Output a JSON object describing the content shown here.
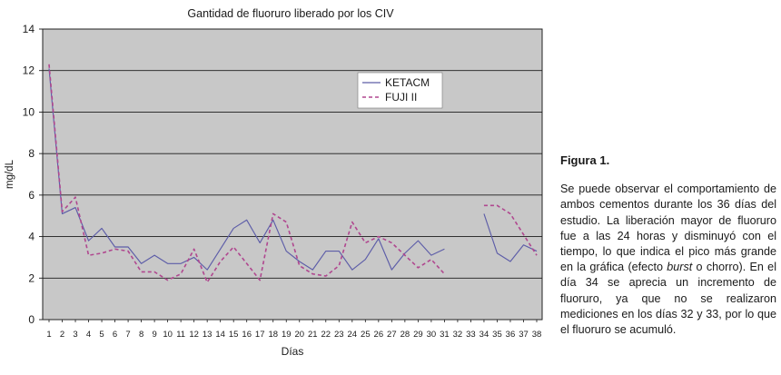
{
  "chart_data": {
    "type": "line",
    "title": "Gantidad de fluoruro liberado por los CIV",
    "xlabel": "Días",
    "ylabel": "mg/dL",
    "ylim": [
      0,
      14
    ],
    "yticks": [
      "0",
      "2",
      "4",
      "6",
      "8",
      "10",
      "12",
      "14"
    ],
    "categories": [
      "1",
      "2",
      "3",
      "4",
      "5",
      "6",
      "7",
      "8",
      "9",
      "10",
      "11",
      "12",
      "13",
      "14",
      "15",
      "16",
      "17",
      "18",
      "19",
      "20",
      "21",
      "22",
      "23",
      "24",
      "25",
      "26",
      "27",
      "28",
      "29",
      "30",
      "31",
      "32",
      "33",
      "34",
      "35",
      "36",
      "37",
      "38"
    ],
    "grid": true,
    "legend_position": "top-right",
    "series": [
      {
        "name": "KETACM",
        "color": "#5d5da8",
        "style": "solid",
        "values": [
          12.1,
          5.1,
          5.4,
          3.8,
          4.4,
          3.5,
          3.5,
          2.7,
          3.1,
          2.7,
          2.7,
          3.0,
          2.4,
          3.4,
          4.4,
          4.8,
          3.7,
          4.8,
          3.3,
          2.8,
          2.4,
          3.3,
          3.3,
          2.4,
          2.9,
          3.9,
          2.4,
          3.2,
          3.8,
          3.1,
          3.4,
          null,
          null,
          5.1,
          3.2,
          2.8,
          3.6,
          3.3
        ]
      },
      {
        "name": "FUJI II",
        "color": "#b0478f",
        "style": "dashed",
        "values": [
          12.3,
          5.2,
          5.9,
          3.1,
          3.2,
          3.4,
          3.3,
          2.3,
          2.3,
          1.9,
          2.2,
          3.4,
          1.8,
          2.8,
          3.5,
          2.7,
          1.9,
          5.1,
          4.7,
          2.6,
          2.2,
          2.1,
          2.6,
          4.7,
          3.7,
          4.0,
          3.7,
          3.1,
          2.5,
          2.9,
          2.2,
          null,
          null,
          5.5,
          5.5,
          5.1,
          4.1,
          3.1
        ]
      }
    ]
  },
  "caption": {
    "title": "Figura 1.",
    "body_before": "Se puede observar el comportamiento de ambos cementos durante los 36 días del estudio. La liberación mayor de fluoruro fue a las 24 horas y disminuyó con el tiempo, lo que indica el pico más grande en la gráfica (efecto ",
    "body_italic": "burst",
    "body_after": " o chorro). En el día 34 se aprecia un incremento de fluoruro, ya que no se realizaron mediciones en los días 32 y 33, por lo que el fluoruro se acumuló."
  }
}
